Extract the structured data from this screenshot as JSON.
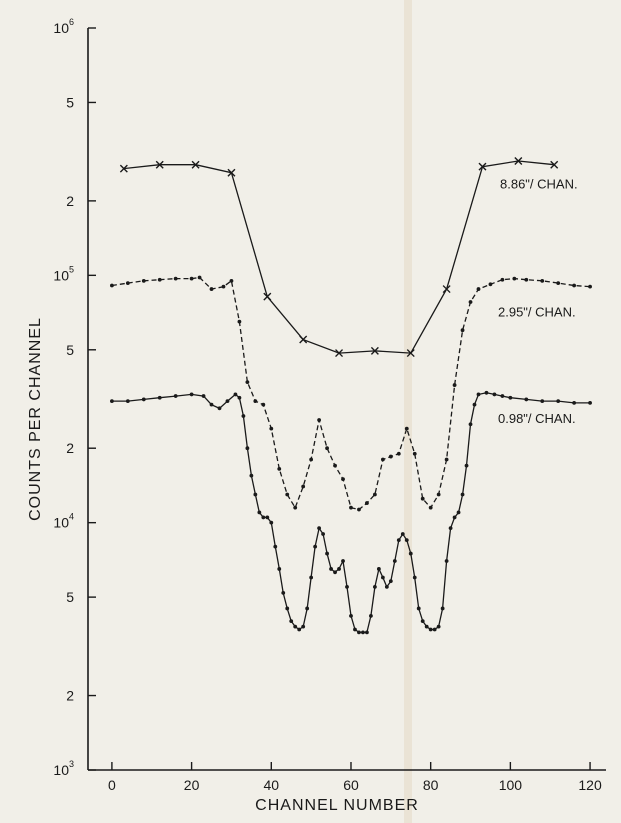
{
  "chart_data": {
    "type": "line",
    "xlabel": "CHANNEL NUMBER",
    "ylabel": "COUNTS PER CHANNEL",
    "y_scale": "log",
    "xlim": [
      -6,
      124
    ],
    "ylim": [
      1000,
      1000000
    ],
    "grid": false,
    "x_ticks": [
      {
        "value": 0,
        "label": "0"
      },
      {
        "value": 20,
        "label": "20"
      },
      {
        "value": 40,
        "label": "40"
      },
      {
        "value": 60,
        "label": "60"
      },
      {
        "value": 80,
        "label": "80"
      },
      {
        "value": 100,
        "label": "100"
      },
      {
        "value": 120,
        "label": "120"
      }
    ],
    "y_ticks": [
      {
        "value": 1000000,
        "base": "10",
        "exp": "6"
      },
      {
        "value": 500000,
        "base": "5",
        "exp": ""
      },
      {
        "value": 200000,
        "base": "2",
        "exp": ""
      },
      {
        "value": 100000,
        "base": "10",
        "exp": "5"
      },
      {
        "value": 50000,
        "base": "5",
        "exp": ""
      },
      {
        "value": 20000,
        "base": "2",
        "exp": ""
      },
      {
        "value": 10000,
        "base": "10",
        "exp": "4"
      },
      {
        "value": 5000,
        "base": "5",
        "exp": ""
      },
      {
        "value": 2000,
        "base": "2",
        "exp": ""
      },
      {
        "value": 1000,
        "base": "10",
        "exp": "3"
      }
    ],
    "series": [
      {
        "name": "8.86\"/ CHAN.",
        "style": "solid",
        "marker": "x",
        "x": [
          3,
          12,
          21,
          30,
          39,
          48,
          57,
          66,
          75,
          84,
          93,
          102,
          111
        ],
        "y": [
          270000,
          280000,
          280000,
          260000,
          82000,
          55000,
          48500,
          49500,
          48500,
          88000,
          275000,
          290000,
          280000
        ]
      },
      {
        "name": "2.95\"/ CHAN.",
        "style": "dashed",
        "marker": "dot",
        "x": [
          0,
          4,
          8,
          12,
          16,
          20,
          22,
          25,
          28,
          30,
          32,
          34,
          36,
          38,
          40,
          42,
          44,
          46,
          48,
          50,
          52,
          54,
          56,
          58,
          60,
          62,
          64,
          66,
          68,
          70,
          72,
          74,
          76,
          78,
          80,
          82,
          84,
          86,
          88,
          90,
          92,
          95,
          98,
          101,
          104,
          108,
          112,
          116,
          120
        ],
        "y": [
          91000,
          93000,
          95000,
          96000,
          97000,
          97000,
          98000,
          88000,
          90000,
          95000,
          65000,
          37000,
          31000,
          30000,
          24000,
          16500,
          13000,
          11500,
          14000,
          18000,
          26000,
          20000,
          17000,
          15000,
          11500,
          11300,
          12000,
          13000,
          18000,
          18500,
          19000,
          24000,
          19000,
          12500,
          11500,
          13000,
          18000,
          36000,
          60000,
          78000,
          88000,
          92000,
          96000,
          97000,
          96000,
          95000,
          93000,
          91000,
          90000
        ]
      },
      {
        "name": "0.98\"/ CHAN.",
        "style": "solid",
        "marker": "dot",
        "x": [
          0,
          4,
          8,
          12,
          16,
          20,
          23,
          25,
          27,
          29,
          31,
          32,
          33,
          34,
          35,
          36,
          37,
          38,
          39,
          40,
          41,
          42,
          43,
          44,
          45,
          46,
          47,
          48,
          49,
          50,
          51,
          52,
          53,
          54,
          55,
          56,
          57,
          58,
          59,
          60,
          61,
          62,
          63,
          64,
          65,
          66,
          67,
          68,
          69,
          70,
          71,
          72,
          73,
          74,
          75,
          76,
          77,
          78,
          79,
          80,
          81,
          82,
          83,
          84,
          85,
          86,
          87,
          88,
          89,
          90,
          91,
          92,
          94,
          96,
          98,
          100,
          104,
          108,
          112,
          116,
          120
        ],
        "y": [
          31000,
          31000,
          31500,
          32000,
          32500,
          33000,
          32500,
          30000,
          29000,
          31000,
          33000,
          32000,
          27000,
          20000,
          15500,
          13000,
          11000,
          10500,
          10500,
          10000,
          8000,
          6500,
          5200,
          4500,
          4000,
          3800,
          3700,
          3800,
          4500,
          6000,
          8000,
          9500,
          9000,
          7500,
          6500,
          6300,
          6500,
          7000,
          5500,
          4200,
          3700,
          3600,
          3600,
          3600,
          4200,
          5500,
          6500,
          6000,
          5500,
          5800,
          7000,
          8500,
          9000,
          8500,
          7500,
          6000,
          4500,
          4000,
          3800,
          3700,
          3700,
          3800,
          4500,
          7000,
          9500,
          10500,
          11000,
          13000,
          17000,
          25000,
          30000,
          33000,
          33500,
          33000,
          32500,
          32000,
          31500,
          31000,
          31000,
          30500,
          30500
        ]
      }
    ]
  }
}
